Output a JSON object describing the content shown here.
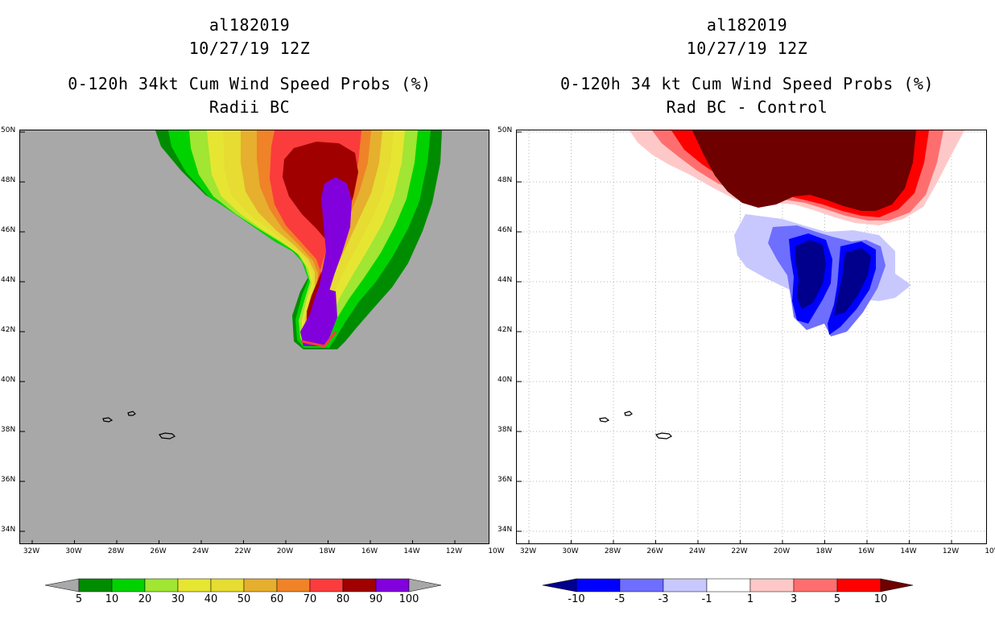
{
  "left_panel": {
    "storm_id": "al182019",
    "datetime": "10/27/19 12Z",
    "title": "0-120h 34kt Cum Wind Speed Probs (%)",
    "subtitle": "Radii BC",
    "colors": {
      "background": "#a8a8a8"
    }
  },
  "right_panel": {
    "storm_id": "al182019",
    "datetime": "10/27/19 12Z",
    "title": "0-120h 34 kt Cum Wind Speed Probs (%)",
    "subtitle": "Rad BC - Control",
    "colors": {
      "background": "#ffffff"
    }
  },
  "axes": {
    "lat_labels": [
      "50N",
      "48N",
      "46N",
      "44N",
      "42N",
      "40N",
      "38N",
      "36N",
      "34N"
    ],
    "lon_labels": [
      "32W",
      "30W",
      "28W",
      "26W",
      "24W",
      "22W",
      "20W",
      "18W",
      "16W",
      "14W",
      "12W",
      "10W"
    ],
    "lat_range": [
      33.5,
      50
    ],
    "lon_range": [
      -32.5,
      -10
    ]
  },
  "left_colorbar": {
    "labels": [
      "5",
      "10",
      "20",
      "30",
      "40",
      "50",
      "60",
      "70",
      "80",
      "90",
      "100"
    ],
    "colors": [
      "#008c00",
      "#00d200",
      "#a0e632",
      "#e6e632",
      "#e6dc32",
      "#e6af2d",
      "#f08228",
      "#fa3c3c",
      "#a00000",
      "#8200dc"
    ],
    "end_color": "#a8a8a8"
  },
  "right_colorbar": {
    "labels": [
      "-10",
      "-5",
      "-3",
      "-1",
      "1",
      "3",
      "5",
      "10"
    ],
    "colors": [
      "#0000ff",
      "#6e6eff",
      "#c8c8ff",
      "#ffffff",
      "#ffc8c8",
      "#ff6e6e",
      "#ff0000"
    ],
    "low_end_color": "#00008c",
    "high_end_color": "#6e0000"
  }
}
